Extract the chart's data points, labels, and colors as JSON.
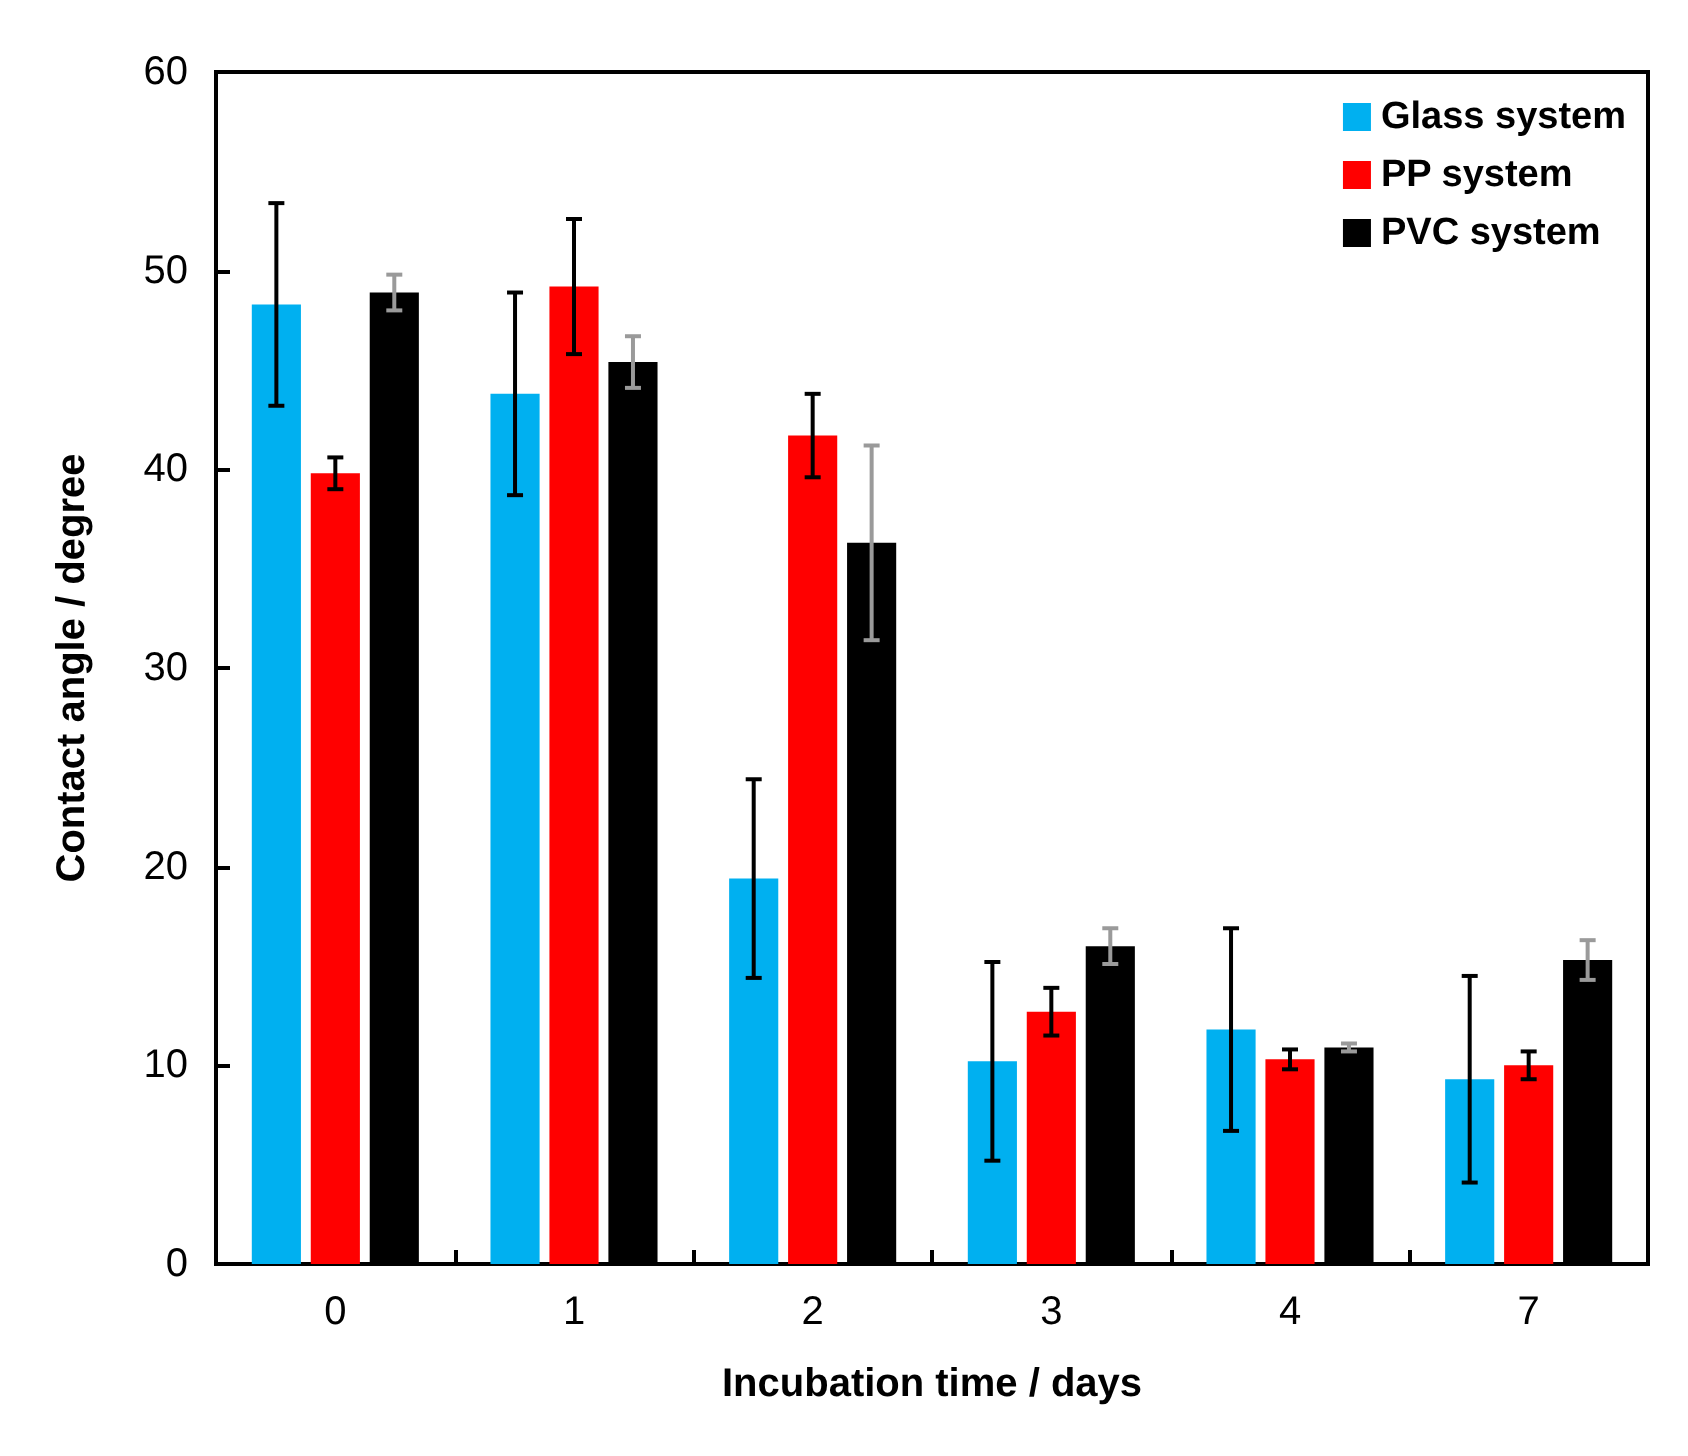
{
  "chart_data": {
    "type": "bar",
    "xlabel": "Incubation time / days",
    "ylabel": "Contact angle / degree",
    "categories": [
      "0",
      "1",
      "2",
      "3",
      "4",
      "7"
    ],
    "series": [
      {
        "name": "Glass system",
        "color": "#00b0f0",
        "values": [
          48.3,
          43.8,
          19.4,
          10.2,
          11.8,
          9.3
        ],
        "errors": [
          5.1,
          5.1,
          5,
          5,
          5.1,
          5.2
        ]
      },
      {
        "name": "PP system",
        "color": "#ff0000",
        "values": [
          39.8,
          49.2,
          41.7,
          12.7,
          10.3,
          10.0
        ],
        "errors": [
          0.8,
          3.4,
          2.1,
          1.2,
          0.5,
          0.7
        ]
      },
      {
        "name": "PVC system",
        "color": "#000000",
        "values": [
          48.9,
          45.4,
          36.3,
          16.0,
          10.9,
          15.3
        ],
        "errors": [
          0.9,
          1.3,
          4.9,
          0.9,
          0.2,
          1.0
        ]
      }
    ],
    "ylim": [
      0,
      60
    ],
    "yticks": [
      0,
      10,
      20,
      30,
      40,
      50,
      60
    ],
    "grid": false,
    "legend": "top right"
  }
}
